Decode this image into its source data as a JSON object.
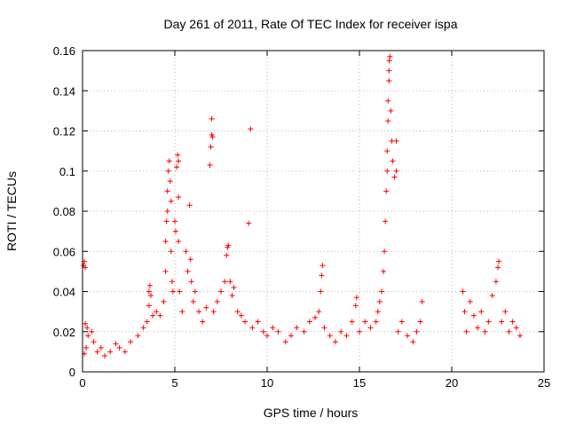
{
  "chart_data": {
    "type": "scatter",
    "title": "Day 261 of 2011, Rate Of TEC Index for receiver ispa",
    "xlabel": "GPS time / hours",
    "ylabel": "ROTI / TECUs",
    "xlim": [
      0,
      25
    ],
    "ylim": [
      0,
      0.16
    ],
    "x_ticks": [
      0,
      5,
      10,
      15,
      20,
      25
    ],
    "x_tick_labels": [
      "0",
      "5",
      "10",
      "15",
      "20",
      "25"
    ],
    "y_ticks": [
      0,
      0.02,
      0.04,
      0.06,
      0.08,
      0.1,
      0.12,
      0.14,
      0.16
    ],
    "y_tick_labels": [
      "0",
      "0.02",
      "0.04",
      "0.06",
      "0.08",
      "0.1",
      "0.12",
      "0.14",
      "0.16"
    ],
    "grid": true,
    "marker": "plus",
    "color": "#ff0000",
    "series": [
      {
        "points": [
          [
            0.05,
            0.053
          ],
          [
            0.1,
            0.055
          ],
          [
            0.15,
            0.052
          ],
          [
            0.1,
            0.009
          ],
          [
            0.2,
            0.012
          ],
          [
            0.3,
            0.018
          ],
          [
            0.15,
            0.024
          ],
          [
            0.25,
            0.022
          ],
          [
            0.5,
            0.02
          ],
          [
            0.6,
            0.015
          ],
          [
            0.8,
            0.01
          ],
          [
            1.0,
            0.012
          ],
          [
            1.2,
            0.008
          ],
          [
            1.5,
            0.01
          ],
          [
            1.8,
            0.014
          ],
          [
            2.0,
            0.012
          ],
          [
            2.3,
            0.01
          ],
          [
            2.6,
            0.015
          ],
          [
            3.0,
            0.018
          ],
          [
            3.3,
            0.022
          ],
          [
            3.5,
            0.025
          ],
          [
            3.6,
            0.033
          ],
          [
            3.8,
            0.028
          ],
          [
            3.6,
            0.04
          ],
          [
            3.65,
            0.043
          ],
          [
            3.7,
            0.038
          ],
          [
            4.0,
            0.03
          ],
          [
            4.2,
            0.028
          ],
          [
            4.4,
            0.035
          ],
          [
            4.5,
            0.05
          ],
          [
            4.5,
            0.065
          ],
          [
            4.55,
            0.075
          ],
          [
            4.6,
            0.08
          ],
          [
            4.6,
            0.09
          ],
          [
            4.65,
            0.1
          ],
          [
            4.7,
            0.105
          ],
          [
            4.75,
            0.095
          ],
          [
            4.8,
            0.085
          ],
          [
            4.8,
            0.06
          ],
          [
            4.85,
            0.045
          ],
          [
            4.9,
            0.04
          ],
          [
            5.0,
            0.075
          ],
          [
            5.05,
            0.07
          ],
          [
            5.1,
            0.102
          ],
          [
            5.15,
            0.108
          ],
          [
            5.2,
            0.105
          ],
          [
            5.2,
            0.087
          ],
          [
            5.2,
            0.065
          ],
          [
            5.25,
            0.04
          ],
          [
            5.4,
            0.03
          ],
          [
            5.6,
            0.06
          ],
          [
            5.7,
            0.05
          ],
          [
            5.8,
            0.083
          ],
          [
            5.85,
            0.056
          ],
          [
            5.9,
            0.045
          ],
          [
            6.0,
            0.035
          ],
          [
            6.1,
            0.04
          ],
          [
            6.3,
            0.03
          ],
          [
            6.5,
            0.025
          ],
          [
            6.7,
            0.032
          ],
          [
            6.9,
            0.103
          ],
          [
            6.95,
            0.112
          ],
          [
            7.0,
            0.118
          ],
          [
            7.0,
            0.126
          ],
          [
            7.05,
            0.117
          ],
          [
            7.1,
            0.03
          ],
          [
            7.3,
            0.035
          ],
          [
            7.5,
            0.04
          ],
          [
            7.7,
            0.045
          ],
          [
            7.8,
            0.058
          ],
          [
            7.85,
            0.062
          ],
          [
            7.9,
            0.063
          ],
          [
            8.0,
            0.045
          ],
          [
            8.1,
            0.038
          ],
          [
            8.2,
            0.042
          ],
          [
            8.4,
            0.03
          ],
          [
            8.6,
            0.028
          ],
          [
            8.8,
            0.025
          ],
          [
            9.0,
            0.074
          ],
          [
            9.1,
            0.121
          ],
          [
            9.2,
            0.022
          ],
          [
            9.5,
            0.025
          ],
          [
            9.8,
            0.02
          ],
          [
            10.0,
            0.018
          ],
          [
            10.3,
            0.022
          ],
          [
            10.6,
            0.02
          ],
          [
            11.0,
            0.015
          ],
          [
            11.3,
            0.018
          ],
          [
            11.6,
            0.022
          ],
          [
            12.0,
            0.02
          ],
          [
            12.3,
            0.025
          ],
          [
            12.6,
            0.027
          ],
          [
            12.8,
            0.03
          ],
          [
            12.9,
            0.04
          ],
          [
            12.95,
            0.048
          ],
          [
            13.0,
            0.053
          ],
          [
            13.1,
            0.022
          ],
          [
            13.4,
            0.018
          ],
          [
            13.7,
            0.015
          ],
          [
            14.0,
            0.02
          ],
          [
            14.3,
            0.018
          ],
          [
            14.6,
            0.025
          ],
          [
            14.8,
            0.033
          ],
          [
            14.85,
            0.037
          ],
          [
            15.0,
            0.02
          ],
          [
            15.3,
            0.025
          ],
          [
            15.6,
            0.022
          ],
          [
            15.9,
            0.025
          ],
          [
            16.0,
            0.03
          ],
          [
            16.1,
            0.035
          ],
          [
            16.2,
            0.04
          ],
          [
            16.3,
            0.05
          ],
          [
            16.35,
            0.06
          ],
          [
            16.4,
            0.075
          ],
          [
            16.45,
            0.09
          ],
          [
            16.5,
            0.1
          ],
          [
            16.5,
            0.11
          ],
          [
            16.55,
            0.125
          ],
          [
            16.55,
            0.135
          ],
          [
            16.6,
            0.145
          ],
          [
            16.6,
            0.15
          ],
          [
            16.62,
            0.155
          ],
          [
            16.65,
            0.157
          ],
          [
            16.7,
            0.13
          ],
          [
            16.75,
            0.115
          ],
          [
            16.8,
            0.105
          ],
          [
            16.9,
            0.097
          ],
          [
            17.0,
            0.1
          ],
          [
            17.0,
            0.115
          ],
          [
            17.1,
            0.02
          ],
          [
            17.3,
            0.025
          ],
          [
            17.6,
            0.018
          ],
          [
            17.9,
            0.015
          ],
          [
            18.1,
            0.02
          ],
          [
            18.3,
            0.025
          ],
          [
            18.4,
            0.035
          ],
          [
            20.6,
            0.04
          ],
          [
            20.7,
            0.03
          ],
          [
            20.8,
            0.02
          ],
          [
            21.0,
            0.035
          ],
          [
            21.2,
            0.028
          ],
          [
            21.4,
            0.022
          ],
          [
            21.6,
            0.03
          ],
          [
            21.8,
            0.02
          ],
          [
            22.0,
            0.025
          ],
          [
            22.2,
            0.038
          ],
          [
            22.4,
            0.045
          ],
          [
            22.5,
            0.052
          ],
          [
            22.55,
            0.055
          ],
          [
            22.7,
            0.025
          ],
          [
            22.9,
            0.03
          ],
          [
            23.1,
            0.02
          ],
          [
            23.3,
            0.025
          ],
          [
            23.5,
            0.022
          ],
          [
            23.7,
            0.018
          ]
        ]
      }
    ]
  }
}
